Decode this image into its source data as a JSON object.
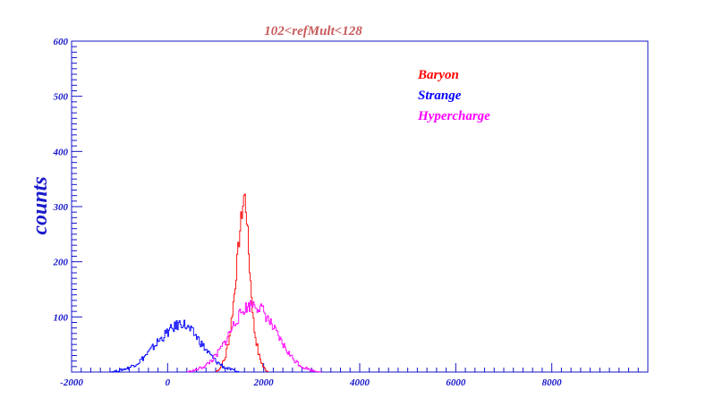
{
  "chart_data": {
    "type": "line",
    "title": "102<refMult<128",
    "xlabel": "",
    "ylabel": "counts",
    "xlim": [
      -2000,
      10000
    ],
    "ylim": [
      0,
      600
    ],
    "x_ticks": [
      -2000,
      0,
      2000,
      4000,
      6000,
      8000
    ],
    "y_ticks": [
      100,
      200,
      300,
      400,
      500,
      600
    ],
    "legend_position": "top-right",
    "grid": false,
    "series": [
      {
        "name": "Baryon",
        "color": "#ff0000",
        "style": "histogram",
        "x": [
          1000,
          1100,
          1200,
          1300,
          1400,
          1500,
          1550,
          1600,
          1650,
          1700,
          1750,
          1800,
          1900,
          2000,
          2100
        ],
        "y": [
          0,
          8,
          25,
          70,
          150,
          250,
          290,
          325,
          280,
          200,
          140,
          80,
          30,
          8,
          0
        ]
      },
      {
        "name": "Strange",
        "color": "#0000ff",
        "style": "histogram",
        "x": [
          -1200,
          -1000,
          -800,
          -600,
          -400,
          -200,
          0,
          200,
          300,
          400,
          600,
          800,
          1000,
          1200,
          1400,
          1500
        ],
        "y": [
          0,
          3,
          8,
          18,
          35,
          55,
          72,
          85,
          90,
          82,
          65,
          40,
          20,
          8,
          2,
          0
        ]
      },
      {
        "name": "Hypercharge",
        "color": "#ff00ff",
        "style": "histogram",
        "x": [
          400,
          600,
          800,
          1000,
          1200,
          1400,
          1600,
          1800,
          2000,
          2200,
          2400,
          2600,
          2800,
          3000,
          3200
        ],
        "y": [
          0,
          4,
          12,
          28,
          55,
          90,
          115,
          125,
          110,
          80,
          50,
          25,
          10,
          3,
          0
        ]
      }
    ]
  }
}
